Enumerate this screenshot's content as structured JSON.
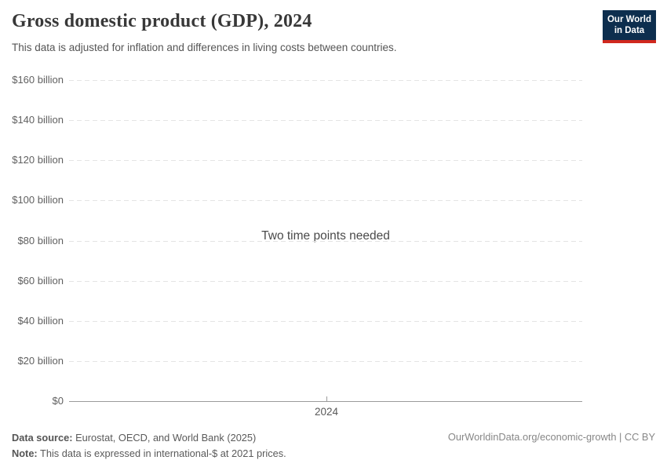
{
  "header": {
    "title": "Gross domestic product (GDP), 2024",
    "subtitle": "This data is adjusted for inflation and differences in living costs between countries.",
    "logo": {
      "line1": "Our World",
      "line2": "in Data",
      "bg_color": "#0d2e4e",
      "accent_color": "#d0281e"
    }
  },
  "chart_data": {
    "type": "line",
    "title": "Gross domestic product (GDP), 2024",
    "message": "Two time points needed",
    "series": [],
    "x_ticks": [
      "2024"
    ],
    "y_ticks": [
      "$160 billion",
      "$140 billion",
      "$120 billion",
      "$100 billion",
      "$80 billion",
      "$60 billion",
      "$40 billion",
      "$20 billion",
      "$0"
    ],
    "ylim": [
      0,
      160000000000
    ],
    "ylabel": "",
    "xlabel": "",
    "grid": "horizontal dashed",
    "legend": "none"
  },
  "footer": {
    "source_label": "Data source:",
    "source_text": "Eurostat, OECD, and World Bank (2025)",
    "note_label": "Note:",
    "note_text": "This data is expressed in international-$ at 2021 prices.",
    "link_text": "OurWorldinData.org/economic-growth | CC BY"
  }
}
